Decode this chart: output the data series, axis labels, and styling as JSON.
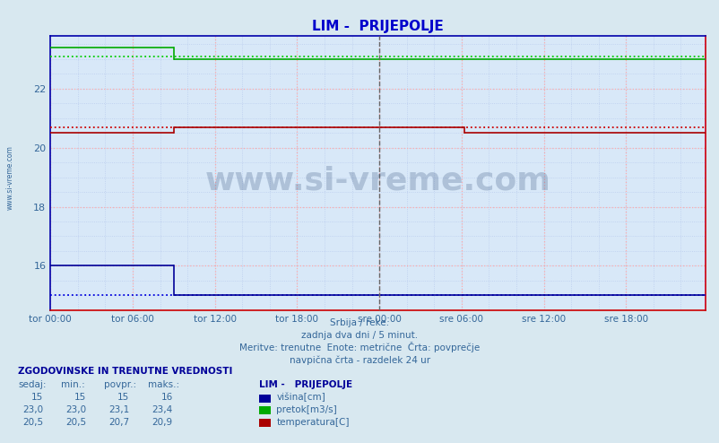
{
  "title": "LIM -  PRIJEPOLJE",
  "title_color": "#0000cc",
  "bg_color": "#d8e8f0",
  "plot_bg_color": "#d8e8f8",
  "grid_color_major": "#ffaaaa",
  "grid_color_minor": "#bbccee",
  "xlabel_ticks": [
    "tor 00:00",
    "tor 06:00",
    "tor 12:00",
    "tor 18:00",
    "sre 00:00",
    "sre 06:00",
    "sre 12:00",
    "sre 18:00"
  ],
  "ylabel_ticks": [
    16,
    18,
    20,
    22
  ],
  "ylim": [
    14.5,
    23.8
  ],
  "xlim_hours": [
    0,
    47.8
  ],
  "tick_positions_hours": [
    0,
    6,
    12,
    18,
    24,
    30,
    36,
    42
  ],
  "vertical_line_sre": 24,
  "vertical_line_end": 47.8,
  "avg_blue": 15.0,
  "avg_green": 23.1,
  "avg_red": 20.7,
  "series_blue": {
    "segments": [
      {
        "x_start": 0,
        "x_end": 9.0,
        "y": 16.0
      },
      {
        "x_start": 9.0,
        "x_end": 47.8,
        "y": 15.0
      }
    ],
    "color": "#000099",
    "avg_color": "#0000dd",
    "linewidth": 1.2
  },
  "series_green": {
    "segments": [
      {
        "x_start": 0,
        "x_end": 9.0,
        "y": 23.4
      },
      {
        "x_start": 9.0,
        "x_end": 47.8,
        "y": 23.0
      }
    ],
    "color": "#00aa00",
    "avg_color": "#00cc00",
    "linewidth": 1.2
  },
  "series_red": {
    "segments": [
      {
        "x_start": 0,
        "x_end": 9.0,
        "y": 20.5
      },
      {
        "x_start": 9.0,
        "x_end": 30.2,
        "y": 20.7
      },
      {
        "x_start": 30.2,
        "x_end": 31.0,
        "y": 20.5
      },
      {
        "x_start": 31.0,
        "x_end": 47.8,
        "y": 20.5
      }
    ],
    "color": "#aa0000",
    "avg_color": "#cc0000",
    "linewidth": 1.2
  },
  "footer_lines": [
    "Srbija / reke.",
    "zadnja dva dni / 5 minut.",
    "Meritve: trenutne  Enote: metrične  Črta: povprečje",
    "navpična črta - razdelek 24 ur"
  ],
  "footer_color": "#336699",
  "legend_title": "LIM -   PRIJEPOLJE",
  "legend_items": [
    {
      "label": "višina[cm]",
      "color": "#000099"
    },
    {
      "label": "pretok[m3/s]",
      "color": "#00aa00"
    },
    {
      "label": "temperatura[C]",
      "color": "#aa0000"
    }
  ],
  "table_header": "ZGODOVINSKE IN TRENUTNE VREDNOSTI",
  "table_cols": [
    "sedaj:",
    "min.:",
    "povpr.:",
    "maks.:"
  ],
  "table_rows": [
    [
      "15",
      "15",
      "15",
      "16"
    ],
    [
      "23,0",
      "23,0",
      "23,1",
      "23,4"
    ],
    [
      "20,5",
      "20,5",
      "20,7",
      "20,9"
    ]
  ],
  "watermark": "www.si-vreme.com",
  "watermark_color": "#1a3a6a",
  "side_label": "www.si-vreme.com",
  "side_label_color": "#336699"
}
